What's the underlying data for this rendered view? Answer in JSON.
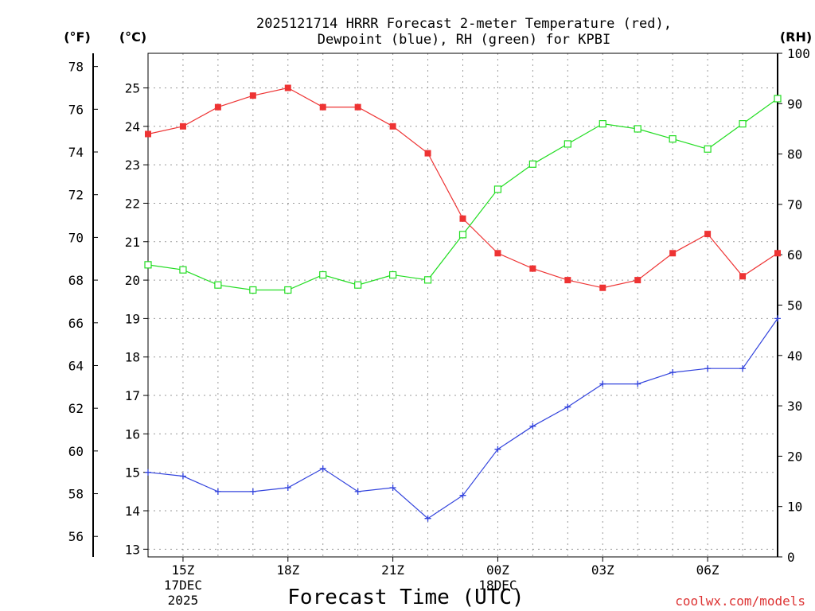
{
  "chart_data": {
    "type": "line",
    "title_line1": "2025121714 HRRR Forecast 2-meter Temperature (red),",
    "title_line2": "Dewpoint (blue), RH (green) for KPBI",
    "unit_f": "(°F)",
    "unit_c": "(°C)",
    "unit_rh": "(RH)",
    "xlabel": "Forecast Time (UTC)",
    "footer": "coolwx.com/models",
    "x_hours": [
      14,
      15,
      16,
      17,
      18,
      19,
      20,
      21,
      22,
      23,
      24,
      25,
      26,
      27,
      28,
      29,
      30,
      31,
      32
    ],
    "x_ticks": [
      {
        "hour": 15,
        "lines": [
          "15Z",
          "17DEC",
          "2025"
        ]
      },
      {
        "hour": 18,
        "lines": [
          "18Z"
        ]
      },
      {
        "hour": 21,
        "lines": [
          "21Z"
        ]
      },
      {
        "hour": 24,
        "lines": [
          "00Z",
          "18DEC"
        ]
      },
      {
        "hour": 27,
        "lines": [
          "03Z"
        ]
      },
      {
        "hour": 30,
        "lines": [
          "06Z"
        ]
      }
    ],
    "c_range": [
      12.8,
      25.9
    ],
    "c_ticks": [
      13,
      14,
      15,
      16,
      17,
      18,
      19,
      20,
      21,
      22,
      23,
      24,
      25
    ],
    "f_ticks": [
      56,
      58,
      60,
      62,
      64,
      66,
      68,
      70,
      72,
      74,
      76,
      78
    ],
    "rh_range": [
      0,
      100
    ],
    "rh_ticks": [
      0,
      10,
      20,
      30,
      40,
      50,
      60,
      70,
      80,
      90,
      100
    ],
    "series": [
      {
        "name": "Temperature",
        "axis": "c",
        "color": "#ee3333",
        "marker": "filled-square",
        "values": [
          23.8,
          24.0,
          24.5,
          24.8,
          25.0,
          24.5,
          24.5,
          24.0,
          23.3,
          21.6,
          20.7,
          20.3,
          20.0,
          19.8,
          20.0,
          20.7,
          21.2,
          20.1,
          20.7
        ]
      },
      {
        "name": "Dewpoint",
        "axis": "c",
        "color": "#3344dd",
        "marker": "plus",
        "values": [
          15.0,
          14.9,
          14.5,
          14.5,
          14.6,
          15.1,
          14.5,
          14.6,
          13.8,
          14.4,
          15.6,
          16.2,
          16.7,
          17.3,
          17.3,
          17.6,
          17.7,
          17.7,
          19.0
        ]
      },
      {
        "name": "RH",
        "axis": "rh",
        "color": "#22dd22",
        "marker": "open-square",
        "values": [
          58.0,
          57.0,
          54.0,
          53.0,
          53.0,
          56.0,
          54.0,
          56.0,
          55.0,
          64.0,
          73.0,
          78.0,
          82.0,
          86.0,
          85.0,
          83.0,
          81.0,
          86.0,
          91.0
        ]
      }
    ]
  }
}
